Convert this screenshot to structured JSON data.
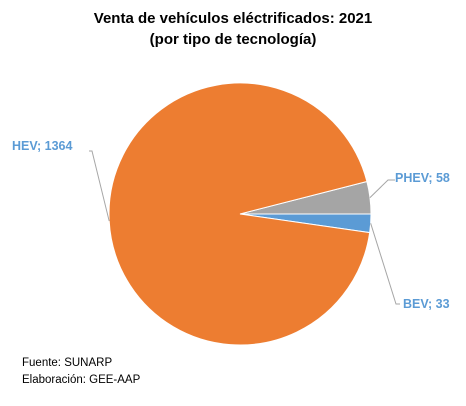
{
  "chart_data": {
    "type": "pie",
    "title": "Venta de vehículos eléctrificados: 2021",
    "subtitle": "(por tipo de tecnología)",
    "slices": [
      {
        "name": "HEV",
        "value": 1364,
        "label": "HEV; 1364",
        "color": "#ed7d31"
      },
      {
        "name": "PHEV",
        "value": 58,
        "label": "PHEV; 58",
        "color": "#a5a5a5"
      },
      {
        "name": "BEV",
        "value": 33,
        "label": "BEV; 33",
        "color": "#5b9bd5"
      }
    ],
    "legend": "none"
  },
  "notes": {
    "source": "Fuente: SUNARP",
    "elaboration": "Elaboración: GEE-AAP"
  }
}
